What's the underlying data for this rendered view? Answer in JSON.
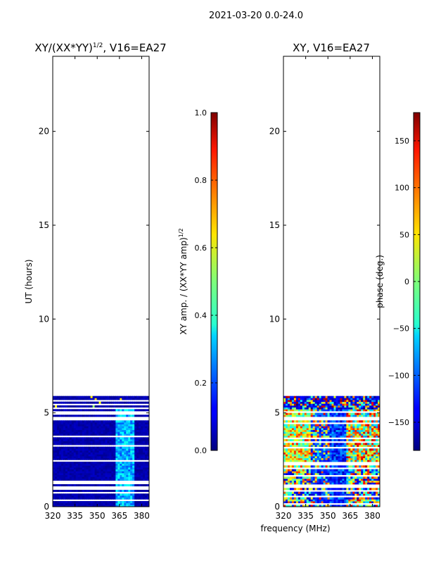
{
  "figure": {
    "suptitle": "2021-03-20 0.0-24.0",
    "xlabel": "frequency (MHz)"
  },
  "chart_data": [
    {
      "type": "heatmap",
      "title_main": "XY/(XX*YY)",
      "title_sup": "1/2",
      "title_tail": ", V16=EA27",
      "ylabel": "UT (hours)",
      "xlim": [
        320,
        385
      ],
      "ylim": [
        0,
        24
      ],
      "xticks": [
        320,
        335,
        350,
        365,
        380
      ],
      "yticks": [
        0,
        5,
        10,
        15,
        20
      ],
      "data_extent_hours": 5.8,
      "colorbar": {
        "label_main": "XY amp. / (XX*YY amp)",
        "label_sup": "1/2",
        "range": [
          0.0,
          1.0
        ],
        "ticks": [
          "0.0",
          "0.2",
          "0.4",
          "0.6",
          "0.8",
          "1.0"
        ],
        "colormap": "jet"
      }
    },
    {
      "type": "heatmap",
      "title": "XY, V16=EA27",
      "xlim": [
        320,
        385
      ],
      "ylim": [
        0,
        24
      ],
      "xticks": [
        320,
        335,
        350,
        365,
        380
      ],
      "yticks": [
        0,
        5,
        10,
        15,
        20
      ],
      "data_extent_hours": 5.8,
      "colorbar": {
        "label": "phase (deg.)",
        "range": [
          -180,
          180
        ],
        "ticks": [
          "−150",
          "−100",
          "−50",
          "0",
          "50",
          "100",
          "150"
        ],
        "colormap": "jet"
      }
    }
  ]
}
